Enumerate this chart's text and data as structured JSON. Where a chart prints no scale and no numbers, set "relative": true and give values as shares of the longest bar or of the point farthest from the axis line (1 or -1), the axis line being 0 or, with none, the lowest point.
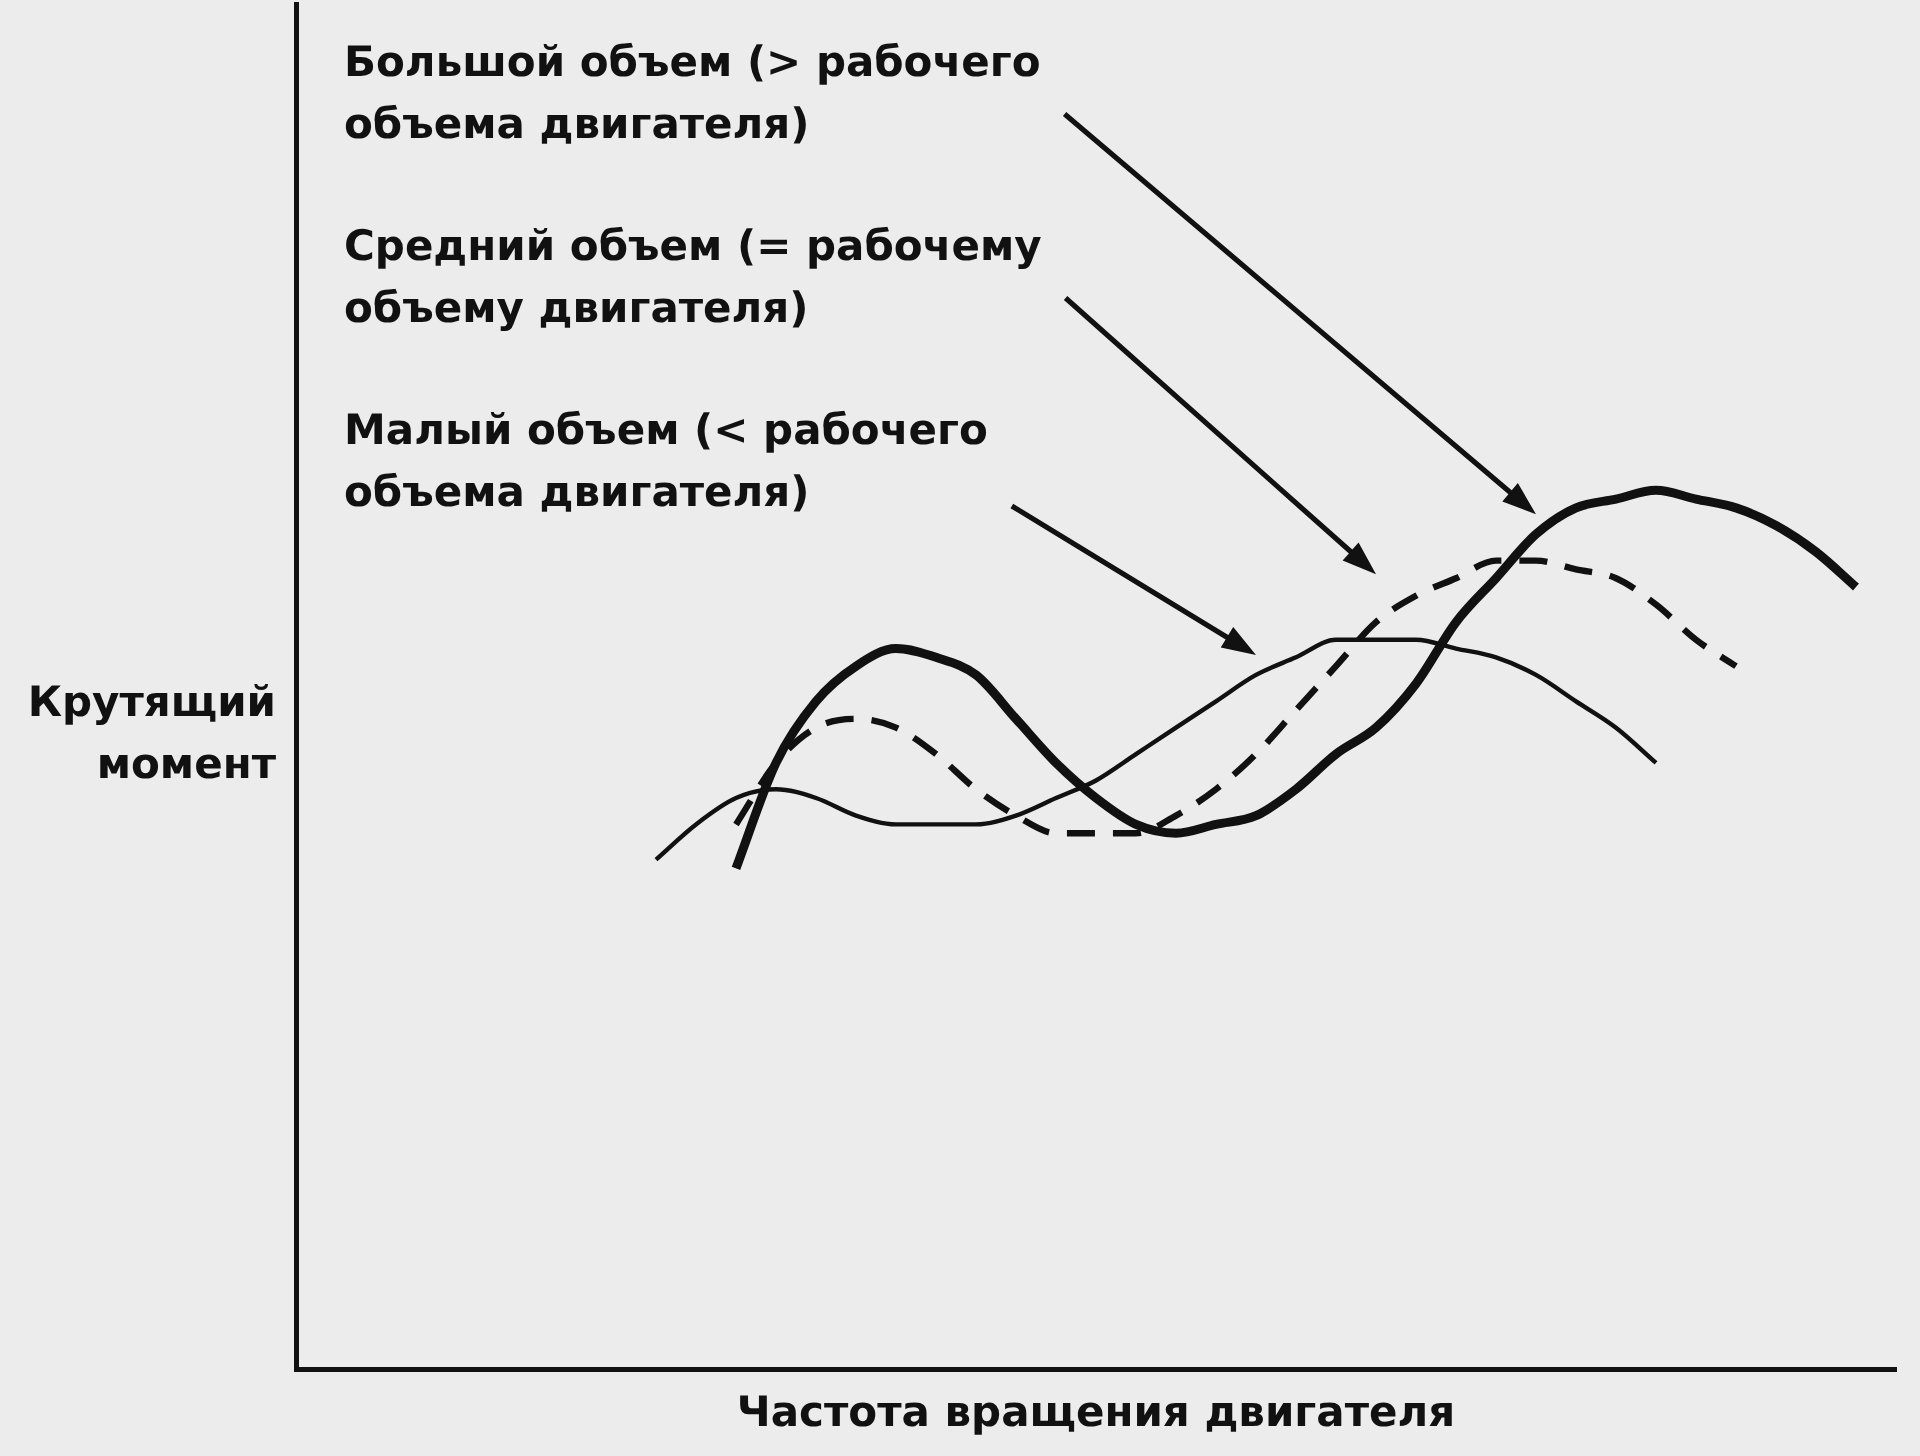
{
  "chart_data": {
    "type": "line",
    "relative": true,
    "marker": "none",
    "xlabel": "Частота вращения двигателя",
    "ylabel": "Крутящий момент",
    "annotations": [
      "Большой объем (> рабочего объема двигателя)",
      "Средний объем (= рабочему объему двигателя)",
      "Малый объем (< рабочего объема двигателя)"
    ],
    "categories": [
      null,
      null,
      null,
      null,
      null,
      null,
      null,
      null,
      null,
      null,
      null,
      null,
      null,
      null,
      null,
      null,
      null,
      null,
      null,
      null,
      null,
      null,
      null,
      null,
      null,
      null,
      null,
      null,
      null,
      null,
      null,
      null,
      null,
      null,
      null,
      null,
      null,
      null,
      null,
      null,
      null
    ],
    "series": [
      {
        "color": "#111111",
        "line_style": "solid",
        "values": [
          null,
          null,
          null,
          null,
          null,
          null,
          null,
          null,
          null,
          null,
          null,
          0.57,
          0.69,
          0.76,
          0.8,
          0.82,
          0.81,
          0.79,
          0.74,
          0.69,
          0.65,
          0.62,
          0.61,
          0.62,
          0.63,
          0.66,
          0.7,
          0.73,
          0.78,
          0.85,
          0.9,
          0.95,
          0.98,
          0.99,
          1.0,
          0.99,
          0.98,
          0.96,
          0.93,
          0.89,
          null
        ]
      },
      {
        "color": "#111111",
        "line_style": "dashed",
        "values": [
          null,
          null,
          null,
          null,
          null,
          null,
          null,
          null,
          null,
          null,
          null,
          0.62,
          0.69,
          0.73,
          0.74,
          0.73,
          0.7,
          0.66,
          0.63,
          0.61,
          0.61,
          0.61,
          0.63,
          0.66,
          0.7,
          0.75,
          0.8,
          0.85,
          0.88,
          0.9,
          0.92,
          0.92,
          0.91,
          0.9,
          0.87,
          0.83,
          0.8,
          null,
          null,
          null,
          null
        ]
      },
      {
        "color": "#111111",
        "line_style": "solid",
        "values": [
          null,
          null,
          null,
          null,
          null,
          null,
          null,
          null,
          null,
          0.58,
          0.62,
          0.65,
          0.66,
          0.65,
          0.63,
          0.62,
          0.62,
          0.62,
          0.63,
          0.65,
          0.67,
          0.7,
          0.73,
          0.76,
          0.79,
          0.81,
          0.83,
          0.83,
          0.83,
          0.82,
          0.81,
          0.79,
          0.76,
          0.73,
          0.69,
          null,
          null,
          null,
          null,
          null,
          null
        ]
      }
    ]
  }
}
